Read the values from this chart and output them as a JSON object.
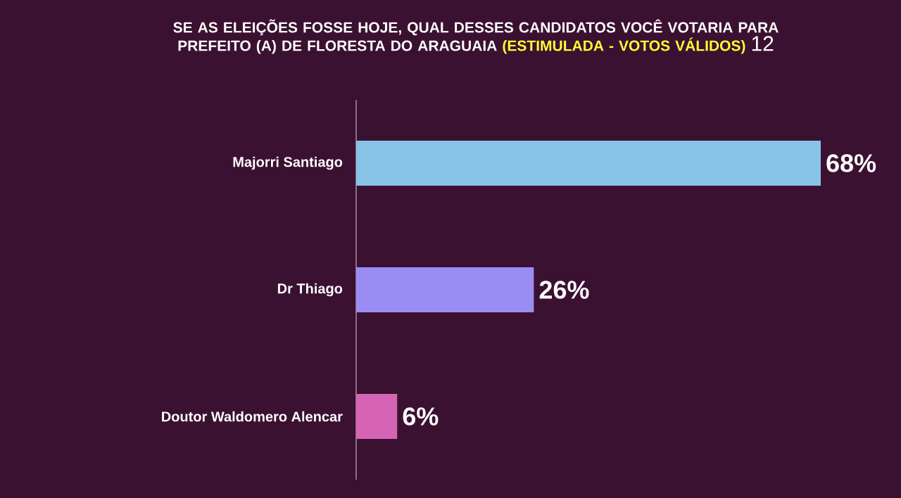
{
  "chart_data": {
    "type": "bar",
    "orientation": "horizontal",
    "title": "SE AS ELEIÇÕES FOSSE HOJE, QUAL DESSES CANDIDATOS VOCÊ VOTARIA PARA PREFEITO (A) DE FLORESTA DO ARAGUAIA",
    "subtitle": "(ESTIMULADA -  VOTOS VÁLIDOS)",
    "annotations": [
      "12"
    ],
    "categories": [
      "Majorri Santiago",
      "Dr Thiago",
      "Doutor Waldomero Alencar"
    ],
    "values": [
      68,
      26,
      6
    ],
    "colors": [
      "#86c3e6",
      "#9a8cf2",
      "#d565b4"
    ],
    "value_labels": [
      "68%",
      "26%",
      "6%"
    ]
  }
}
